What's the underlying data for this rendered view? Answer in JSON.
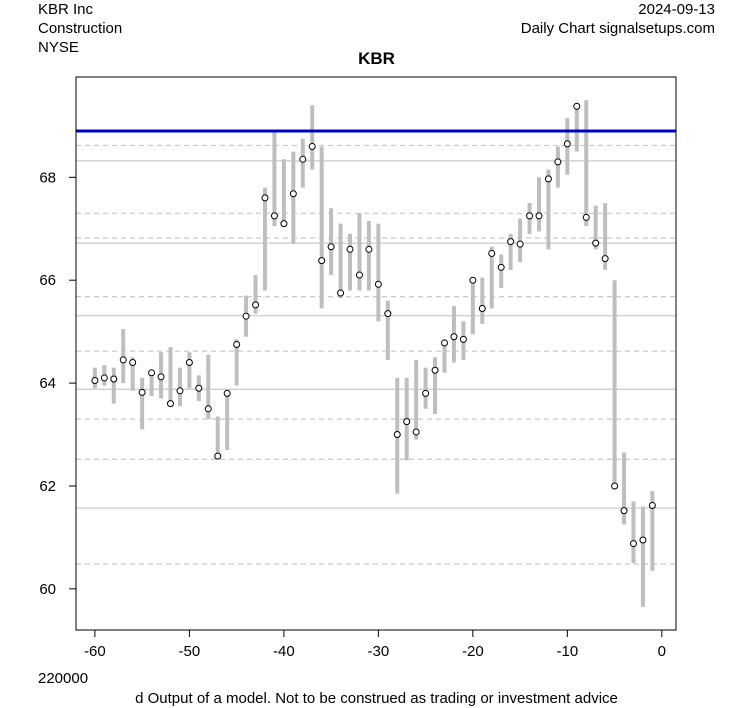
{
  "header": {
    "company": "KBR Inc",
    "sector": "Construction",
    "exchange": "NYSE",
    "date": "2024-09-13",
    "source": "Daily Chart signalsetups.com"
  },
  "footer": {
    "volume_label": "220000",
    "disclaimer": "d Output of a model. Not to be construed as trading or investment advice"
  },
  "colors": {
    "bar": "#bebebe",
    "resistance": "#0000cc",
    "grid_solid": "#c8c8c8",
    "grid_dashed": "#c8c8c8"
  },
  "chart_data": {
    "type": "line",
    "title": "KBR",
    "xlabel": "",
    "ylabel": "",
    "xlim": [
      -62,
      1.5
    ],
    "ylim": [
      59.2,
      69.95
    ],
    "xticks": [
      -60,
      -50,
      -40,
      -30,
      -20,
      -10,
      0
    ],
    "yticks": [
      60,
      62,
      64,
      66,
      68
    ],
    "resistance_level": 68.9,
    "horizontal_lines_solid": [
      68.32,
      66.72,
      65.31,
      63.88,
      61.57
    ],
    "horizontal_lines_dashed": [
      68.62,
      67.3,
      66.82,
      65.68,
      64.62,
      63.3,
      62.52,
      60.48
    ],
    "grid": false,
    "series": [
      {
        "x": [
          -60,
          -59,
          -58,
          -57,
          -56,
          -55,
          -54,
          -53,
          -52,
          -51,
          -50,
          -49,
          -48,
          -47,
          -46,
          -45,
          -44,
          -43,
          -42,
          -41,
          -40,
          -39,
          -38,
          -37,
          -36,
          -35,
          -34,
          -33,
          -32,
          -31,
          -30,
          -29,
          -28,
          -27,
          -26,
          -25,
          -24,
          -23,
          -22,
          -21,
          -20,
          -19,
          -18,
          -17,
          -16,
          -15,
          -14,
          -13,
          -12,
          -11,
          -10,
          -9,
          -8,
          -7,
          -6,
          -5,
          -4,
          -3,
          -2,
          -1
        ],
        "high": [
          64.3,
          64.35,
          64.3,
          65.05,
          64.5,
          64.1,
          64.2,
          64.6,
          64.7,
          64.3,
          64.6,
          64.15,
          64.55,
          63.35,
          63.85,
          64.85,
          65.7,
          66.1,
          67.8,
          68.9,
          68.35,
          68.5,
          68.75,
          69.4,
          68.6,
          67.4,
          67.1,
          66.9,
          67.3,
          67.15,
          67.1,
          65.6,
          64.1,
          64.1,
          64.45,
          64.3,
          64.5,
          64.85,
          65.5,
          65.2,
          66.05,
          66.05,
          66.65,
          66.5,
          66.9,
          67.2,
          67.5,
          68.0,
          68.15,
          68.6,
          69.15,
          69.45,
          69.5,
          67.45,
          67.5,
          66.0,
          62.65,
          61.7,
          61.6,
          61.9
        ],
        "low": [
          63.9,
          63.95,
          63.6,
          64.0,
          63.85,
          63.1,
          63.75,
          63.7,
          63.55,
          63.55,
          63.9,
          63.65,
          63.3,
          62.55,
          62.7,
          63.95,
          64.9,
          65.35,
          65.8,
          67.05,
          67.05,
          66.7,
          67.8,
          68.15,
          65.45,
          66.1,
          65.65,
          65.8,
          65.8,
          65.8,
          65.2,
          64.45,
          61.85,
          62.5,
          62.9,
          63.5,
          63.4,
          64.2,
          64.4,
          64.45,
          64.95,
          65.15,
          65.45,
          65.85,
          66.2,
          66.35,
          66.9,
          66.95,
          66.6,
          67.8,
          68.05,
          68.5,
          67.05,
          66.6,
          66.2,
          61.95,
          61.25,
          60.5,
          59.65,
          60.35
        ],
        "close": [
          64.05,
          64.1,
          64.08,
          64.45,
          64.4,
          63.82,
          64.2,
          64.12,
          63.6,
          63.85,
          64.4,
          63.9,
          63.5,
          62.58,
          63.8,
          64.75,
          65.3,
          65.52,
          67.6,
          67.25,
          67.1,
          67.68,
          68.35,
          68.6,
          66.38,
          66.65,
          65.75,
          66.6,
          66.1,
          66.6,
          65.92,
          65.35,
          63.0,
          63.25,
          63.05,
          63.8,
          64.25,
          64.78,
          64.9,
          64.85,
          66.0,
          65.45,
          66.52,
          66.25,
          66.75,
          66.7,
          67.25,
          67.25,
          67.97,
          68.3,
          68.65,
          69.38,
          67.22,
          66.72,
          66.42,
          62.0,
          61.52,
          60.88,
          60.95,
          61.62
        ]
      }
    ]
  }
}
